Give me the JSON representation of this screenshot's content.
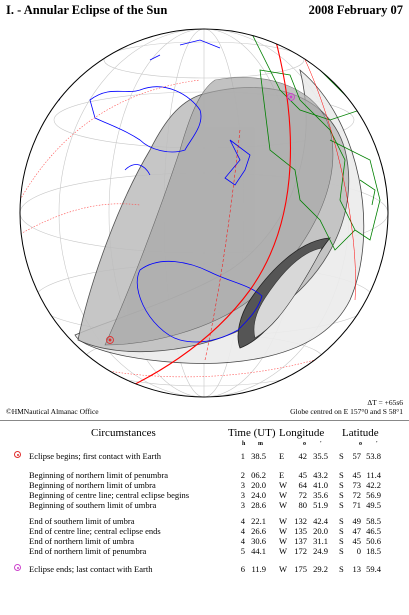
{
  "header": {
    "title": "I. - Annular Eclipse of the Sun",
    "date": "2008 February 07"
  },
  "footer": {
    "copyright": "©HMNautical Almanac Office",
    "delta_t": "ΔT = +65s6",
    "globe_centre": "Globe centred on E 157°0 and S 58°1"
  },
  "colors": {
    "coastline": "#0000ff",
    "borders": "#008000",
    "central_line": "#ff0000",
    "penumbra": "#999999",
    "umbra": "#555555",
    "first_contact_marker": "#e03030",
    "last_contact_marker": "#cc44cc"
  },
  "table": {
    "headers": {
      "circumstances": "Circumstances",
      "time": "Time (UT)",
      "longitude": "Longitude",
      "latitude": "Latitude"
    },
    "units": {
      "h": "h",
      "m": "m",
      "deg": "o",
      "arcmin": "'"
    },
    "rows": [
      {
        "desc": "Eclipse begins; first contact with Earth",
        "h": "1",
        "m": "38.5",
        "ew": "E",
        "lon_d": "42",
        "lon_m": "35.5",
        "ns": "S",
        "lat_d": "57",
        "lat_m": "53.8",
        "marker": "first"
      },
      {
        "desc": "Beginning of northern limit of penumbra",
        "h": "2",
        "m": "06.2",
        "ew": "E",
        "lon_d": "45",
        "lon_m": "43.2",
        "ns": "S",
        "lat_d": "45",
        "lat_m": "11.4"
      },
      {
        "desc": "Beginning of northern limit of umbra",
        "h": "3",
        "m": "20.0",
        "ew": "W",
        "lon_d": "64",
        "lon_m": "41.0",
        "ns": "S",
        "lat_d": "73",
        "lat_m": "42.2"
      },
      {
        "desc": "Beginning of centre line; central eclipse begins",
        "h": "3",
        "m": "24.0",
        "ew": "W",
        "lon_d": "72",
        "lon_m": "35.6",
        "ns": "S",
        "lat_d": "72",
        "lat_m": "56.9"
      },
      {
        "desc": "Beginning of southern limit of umbra",
        "h": "3",
        "m": "28.6",
        "ew": "W",
        "lon_d": "80",
        "lon_m": "51.9",
        "ns": "S",
        "lat_d": "71",
        "lat_m": "49.5"
      },
      {
        "desc": "End of southern limit of umbra",
        "h": "4",
        "m": "22.1",
        "ew": "W",
        "lon_d": "132",
        "lon_m": "42.4",
        "ns": "S",
        "lat_d": "49",
        "lat_m": "58.5"
      },
      {
        "desc": "End of centre line; central eclipse ends",
        "h": "4",
        "m": "26.6",
        "ew": "W",
        "lon_d": "135",
        "lon_m": "20.0",
        "ns": "S",
        "lat_d": "47",
        "lat_m": "46.5"
      },
      {
        "desc": "End of northern limit of umbra",
        "h": "4",
        "m": "30.6",
        "ew": "W",
        "lon_d": "137",
        "lon_m": "31.1",
        "ns": "S",
        "lat_d": "45",
        "lat_m": "50.6"
      },
      {
        "desc": "End of northern limit of penumbra",
        "h": "5",
        "m": "44.1",
        "ew": "W",
        "lon_d": "172",
        "lon_m": "24.9",
        "ns": "S",
        "lat_d": "0",
        "lat_m": "18.5"
      },
      {
        "desc": "Eclipse ends; last contact with Earth",
        "h": "6",
        "m": "11.9",
        "ew": "W",
        "lon_d": "175",
        "lon_m": "29.2",
        "ns": "S",
        "lat_d": "13",
        "lat_m": "59.4",
        "marker": "last"
      }
    ]
  }
}
